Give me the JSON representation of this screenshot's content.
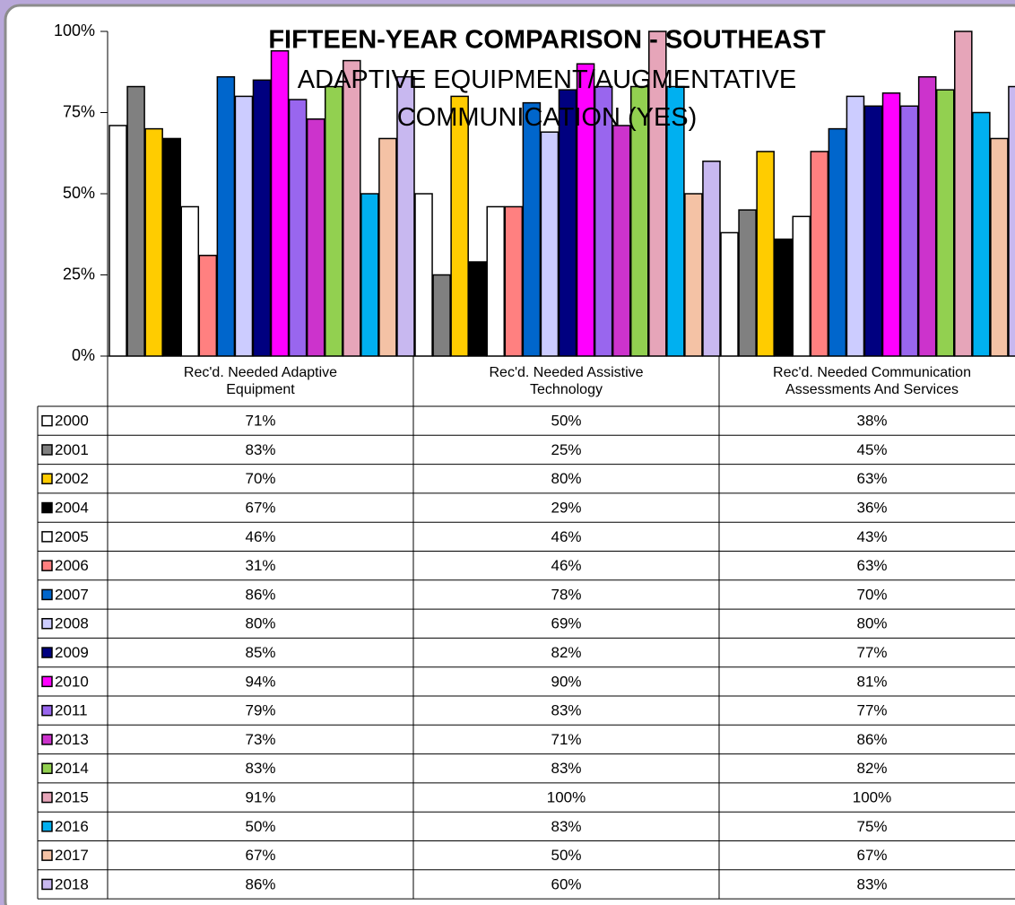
{
  "chart_data": {
    "type": "bar",
    "title": "FIFTEEN-YEAR COMPARISON - SOUTHEAST",
    "subtitle": "ADAPTIVE EQUIPMENT/AUGMENTATIVE COMMUNICATION (YES)",
    "categories": [
      "Rec'd. Needed Adaptive Equipment",
      "Rec'd. Needed Assistive Technology",
      "Rec'd. Needed Communication Assessments And Services"
    ],
    "ylim": [
      0,
      100
    ],
    "yticks": [
      {
        "value": 0,
        "label": "0%"
      },
      {
        "value": 25,
        "label": "25%"
      },
      {
        "value": 50,
        "label": "50%"
      },
      {
        "value": 75,
        "label": "75%"
      },
      {
        "value": 100,
        "label": "100%"
      }
    ],
    "series": [
      {
        "name": "2000",
        "color": "#ffffff",
        "values": [
          71,
          50,
          38
        ],
        "value_labels": [
          "71%",
          "50%",
          "38%"
        ]
      },
      {
        "name": "2001",
        "color": "#808080",
        "values": [
          83,
          25,
          45
        ],
        "value_labels": [
          "83%",
          "25%",
          "45%"
        ]
      },
      {
        "name": "2002",
        "color": "#ffcc00",
        "values": [
          70,
          80,
          63
        ],
        "value_labels": [
          "70%",
          "80%",
          "63%"
        ]
      },
      {
        "name": "2004",
        "color": "#000000",
        "values": [
          67,
          29,
          36
        ],
        "value_labels": [
          "67%",
          "29%",
          "36%"
        ]
      },
      {
        "name": "2005",
        "color": "#ffffff",
        "values": [
          46,
          46,
          43
        ],
        "value_labels": [
          "46%",
          "46%",
          "43%"
        ]
      },
      {
        "name": "2006",
        "color": "#ff8080",
        "values": [
          31,
          46,
          63
        ],
        "value_labels": [
          "31%",
          "46%",
          "63%"
        ]
      },
      {
        "name": "2007",
        "color": "#0066cc",
        "values": [
          86,
          78,
          70
        ],
        "value_labels": [
          "86%",
          "78%",
          "70%"
        ]
      },
      {
        "name": "2008",
        "color": "#ccccff",
        "values": [
          80,
          69,
          80
        ],
        "value_labels": [
          "80%",
          "69%",
          "80%"
        ]
      },
      {
        "name": "2009",
        "color": "#000080",
        "values": [
          85,
          82,
          77
        ],
        "value_labels": [
          "85%",
          "82%",
          "77%"
        ]
      },
      {
        "name": "2010",
        "color": "#ff00ff",
        "values": [
          94,
          90,
          81
        ],
        "value_labels": [
          "94%",
          "90%",
          "81%"
        ]
      },
      {
        "name": "2011",
        "color": "#9966ee",
        "values": [
          79,
          83,
          77
        ],
        "value_labels": [
          "79%",
          "83%",
          "77%"
        ]
      },
      {
        "name": "2013",
        "color": "#cc33cc",
        "values": [
          73,
          71,
          86
        ],
        "value_labels": [
          "73%",
          "71%",
          "86%"
        ]
      },
      {
        "name": "2014",
        "color": "#92d050",
        "values": [
          83,
          83,
          82
        ],
        "value_labels": [
          "83%",
          "83%",
          "82%"
        ]
      },
      {
        "name": "2015",
        "color": "#e6a5b9",
        "values": [
          91,
          100,
          100
        ],
        "value_labels": [
          "91%",
          "100%",
          "100%"
        ]
      },
      {
        "name": "2016",
        "color": "#00b0f0",
        "values": [
          50,
          83,
          75
        ],
        "value_labels": [
          "50%",
          "83%",
          "75%"
        ]
      },
      {
        "name": "2017",
        "color": "#f4c2a5",
        "values": [
          67,
          50,
          67
        ],
        "value_labels": [
          "67%",
          "50%",
          "67%"
        ]
      },
      {
        "name": "2018",
        "color": "#c8b8f0",
        "values": [
          86,
          60,
          83
        ],
        "value_labels": [
          "86%",
          "60%",
          "83%"
        ]
      }
    ]
  }
}
